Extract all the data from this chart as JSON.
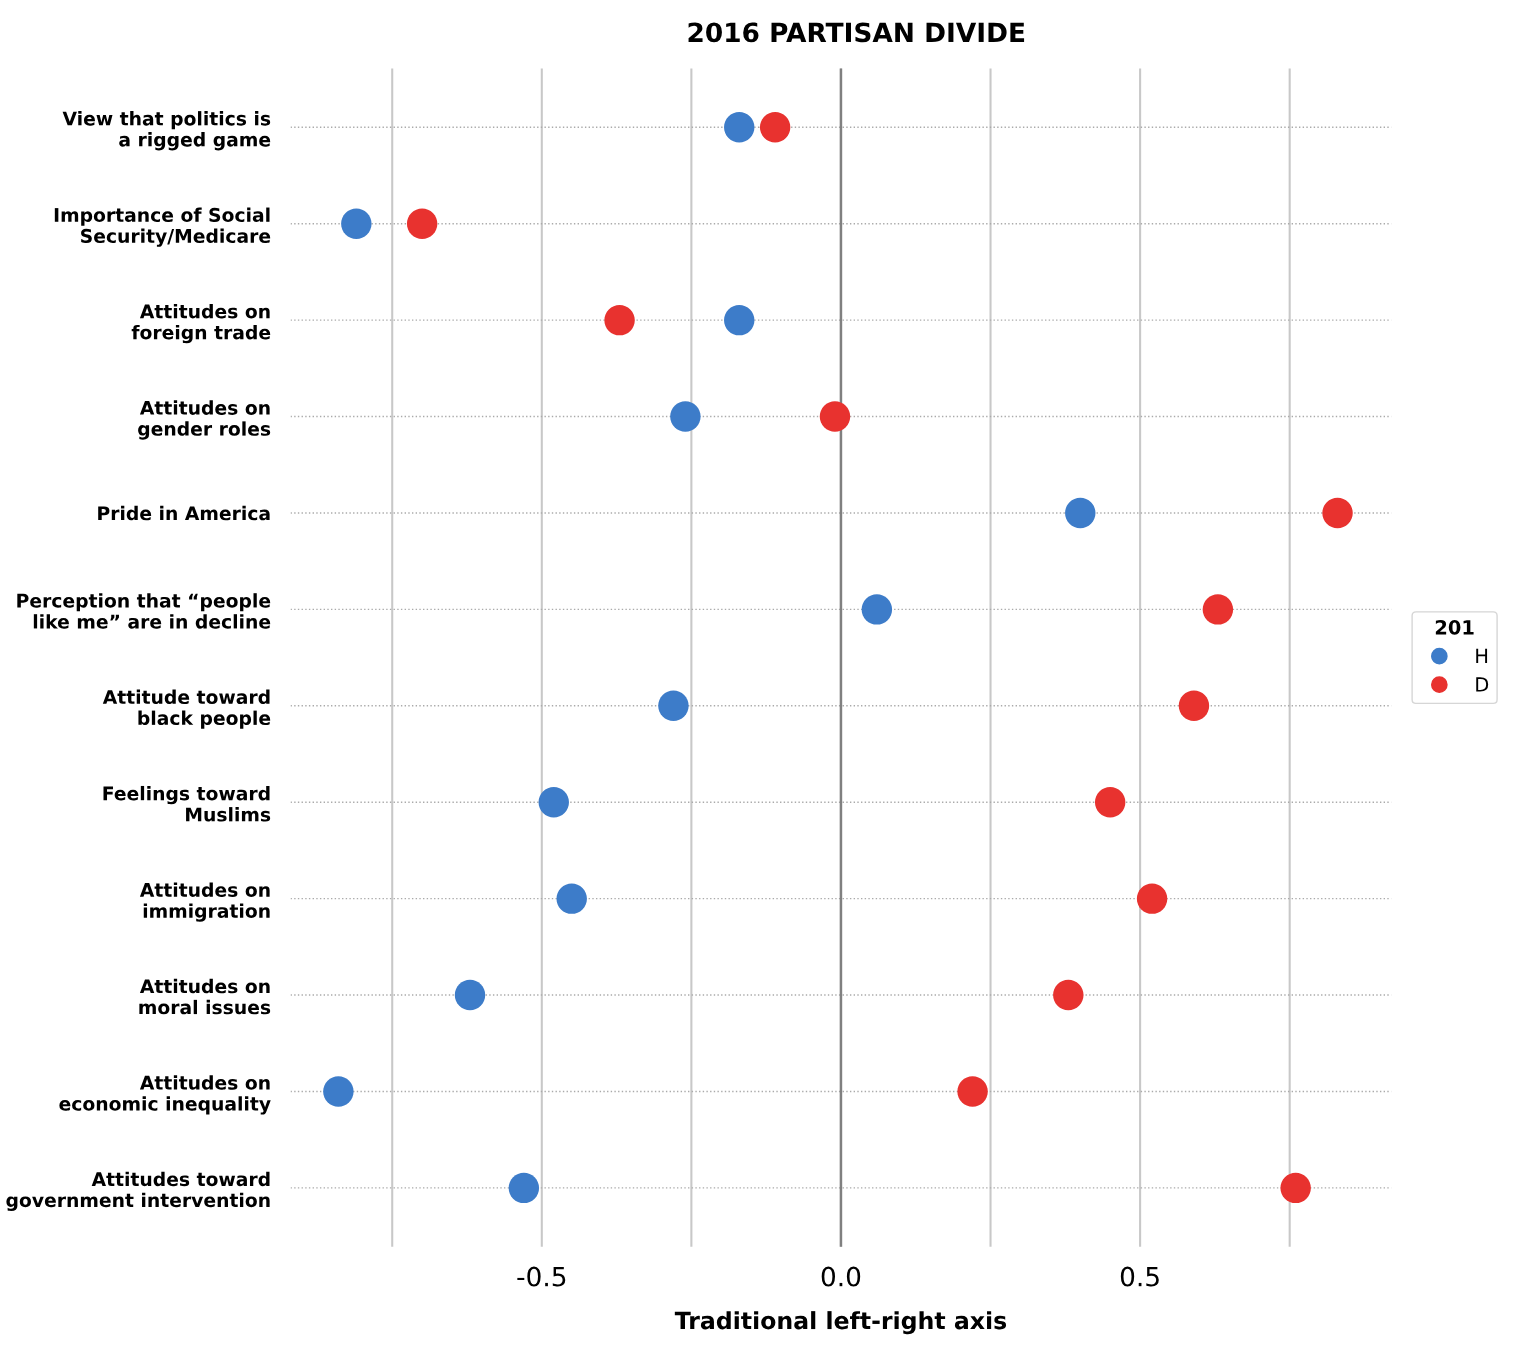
{
  "chart_data": {
    "type": "scatter",
    "title": "2016 PARTISAN DIVIDE",
    "xlabel": "Traditional left-right axis",
    "categories": [
      "View that politics is\na rigged game",
      "Importance of Social\nSecurity/Medicare",
      "Attitudes on\nforeign trade",
      "Attitudes on\ngender roles",
      "Pride in America",
      "Perception that “people\nlike me” are in decline",
      "Attitude toward\nblack people",
      "Feelings toward\nMuslims",
      "Attitudes on\nimmigration",
      "Attitudes on\nmoral issues",
      "Attitudes on\neconomic inequality",
      "Attitudes toward\ngovernment intervention"
    ],
    "orientation": "horizontal",
    "series": [
      {
        "name": "H",
        "color": "#3d7cc9",
        "values": [
          -0.17,
          -0.81,
          -0.17,
          -0.26,
          0.4,
          0.06,
          -0.28,
          -0.48,
          -0.45,
          -0.62,
          -0.84,
          -0.53
        ]
      },
      {
        "name": "D",
        "color": "#e8322f",
        "values": [
          -0.11,
          -0.7,
          -0.37,
          -0.01,
          0.83,
          0.63,
          0.59,
          0.45,
          0.52,
          0.38,
          0.22,
          0.76
        ]
      }
    ],
    "legend_title": "201",
    "legend": "right",
    "marker": "circle",
    "xlim": [
      -0.92,
      0.92
    ],
    "xticks": [
      {
        "value": -0.75,
        "label": null
      },
      -0.5,
      {
        "value": -0.25,
        "label": null
      },
      {
        "value": 0.0,
        "label": "0.0"
      },
      {
        "value": 0.25,
        "label": null
      },
      0.5,
      {
        "value": 0.75,
        "label": null
      }
    ],
    "grid": true,
    "ref_lines": [
      {
        "axis": "x",
        "value": 0,
        "color": "#808080"
      }
    ]
  }
}
